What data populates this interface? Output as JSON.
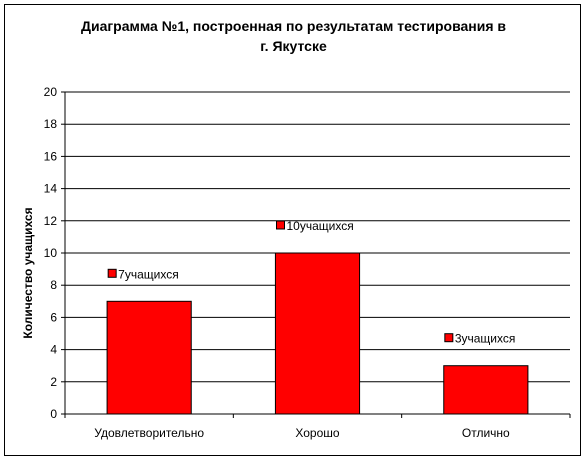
{
  "chart_data": {
    "type": "bar",
    "title_line1": "Диаграмма №1, построенная по результатам тестирования  в",
    "title_line2": "г. Якутске",
    "ylabel": "Количество учащихся",
    "xlabel": "",
    "ylim": [
      0,
      20
    ],
    "ytick_step": 2,
    "grid": true,
    "categories": [
      "Удовлетворительно",
      "Хорошо",
      "Отлично"
    ],
    "values": [
      7,
      10,
      3
    ],
    "data_labels": [
      "7учащихся",
      "10учащихся",
      "3учащихся"
    ],
    "bar_color": "#ff0000"
  }
}
